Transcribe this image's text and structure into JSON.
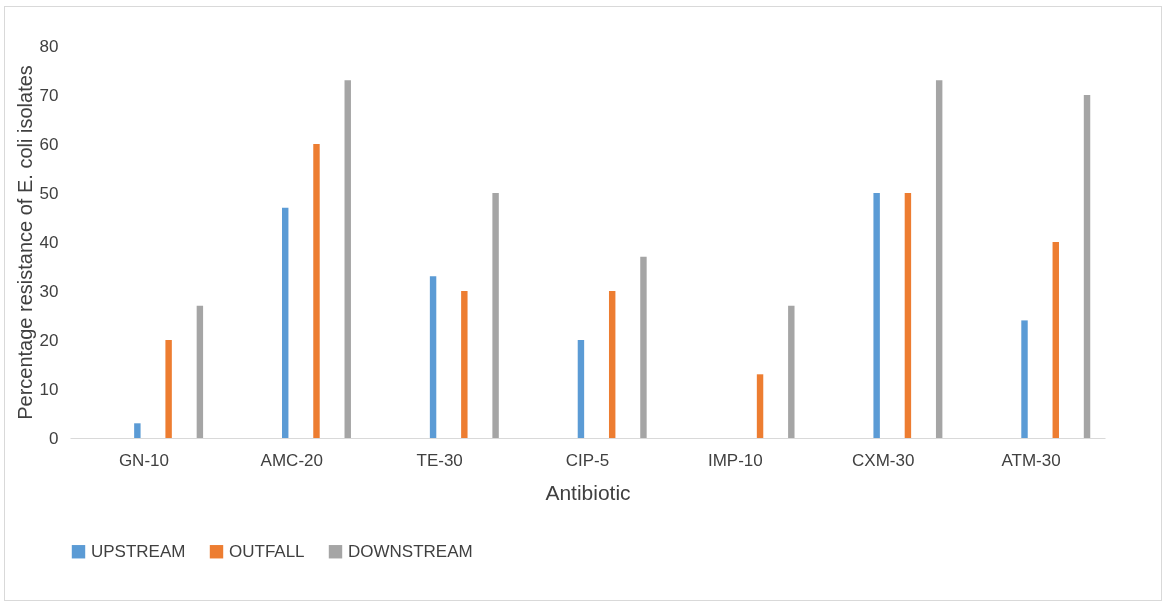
{
  "chart_data": {
    "type": "bar",
    "xlabel": "Antibiotic",
    "ylabel": "Percentage resistance of E. coli isolates",
    "categories": [
      "GN-10",
      "AMC-20",
      "TE-30",
      "CIP-5",
      "IMP-10",
      "CXM-30",
      "ATM-30"
    ],
    "series": [
      {
        "name": "UPSTREAM",
        "color": "#5b9bd5",
        "values": [
          3,
          47,
          33,
          20,
          0,
          50,
          24
        ]
      },
      {
        "name": "OUTFALL",
        "color": "#ed7d31",
        "values": [
          20,
          60,
          30,
          30,
          13,
          50,
          40
        ]
      },
      {
        "name": "DOWNSTREAM",
        "color": "#a5a5a5",
        "values": [
          27,
          73,
          50,
          37,
          27,
          73,
          70
        ]
      }
    ],
    "ylim": [
      0,
      80
    ],
    "yticks": [
      0,
      10,
      20,
      30,
      40,
      50,
      60,
      70,
      80
    ],
    "grid": false,
    "legend": "bottom"
  }
}
